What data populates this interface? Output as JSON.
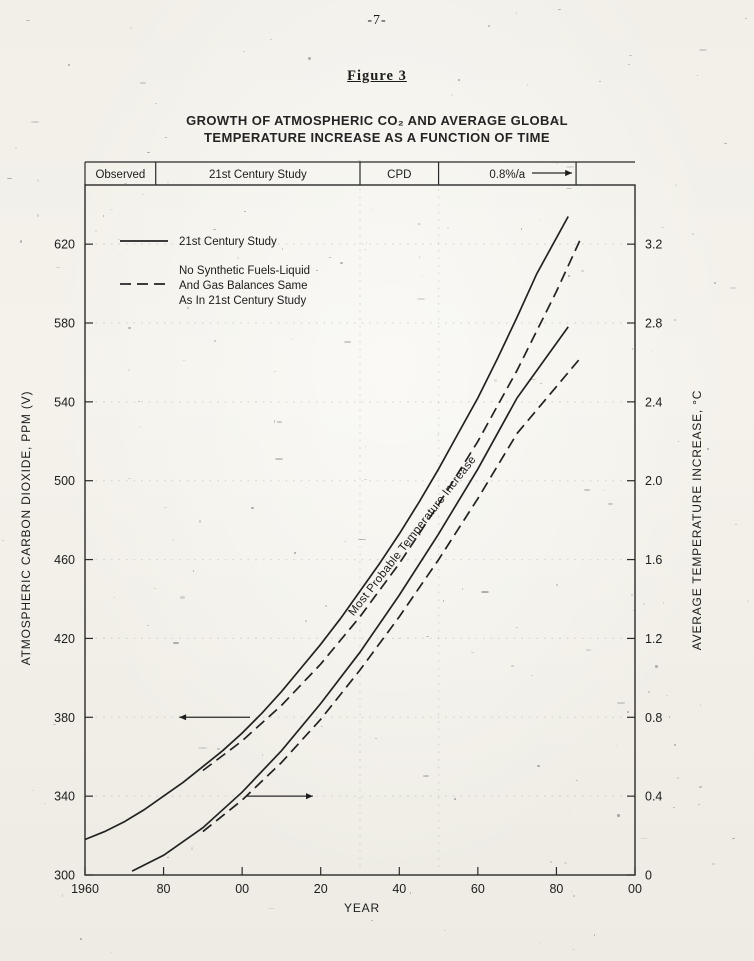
{
  "page": {
    "number": "-7-",
    "figure_label": "Figure 3"
  },
  "chart_data": {
    "type": "line",
    "title_lines": [
      "GROWTH OF ATMOSPHERIC CO₂ AND AVERAGE GLOBAL",
      "TEMPERATURE INCREASE AS A FUNCTION OF TIME"
    ],
    "xlabel": "YEAR",
    "ylabel_left": "ATMOSPHERIC CARBON DIOXIDE, PPM (V)",
    "ylabel_right": "AVERAGE TEMPERATURE INCREASE, °C",
    "xlim": [
      1960,
      2100
    ],
    "ylim_left": [
      300,
      650
    ],
    "ylim_right": [
      0,
      3.5
    ],
    "x_tick_values": [
      1960,
      1980,
      2000,
      2020,
      2040,
      2060,
      2080,
      2100
    ],
    "x_tick_labels": [
      "1960",
      "80",
      "00",
      "20",
      "40",
      "60",
      "80",
      "00"
    ],
    "y_left_ticks": [
      300,
      340,
      380,
      420,
      460,
      500,
      540,
      580,
      620
    ],
    "y_right_tick_values": [
      0,
      0.4,
      0.8,
      1.2,
      1.6,
      2.0,
      2.4,
      2.8,
      3.2
    ],
    "y_right_tick_labels": [
      "0",
      "0.4",
      "0.8",
      "1.2",
      "1.6",
      "2.0",
      "2.4",
      "2.8",
      "3.2"
    ],
    "bands": [
      {
        "label": "Observed",
        "from": 1960,
        "to": 1978
      },
      {
        "label": "21st Century Study",
        "from": 1978,
        "to": 2030
      },
      {
        "label": "CPD",
        "from": 2030,
        "to": 2050
      },
      {
        "label": "0.8%/a",
        "from": 2050,
        "to": 2085
      }
    ],
    "legend": [
      {
        "style": "solid",
        "lines": [
          "21st Century Study"
        ]
      },
      {
        "style": "dashed",
        "lines": [
          "No Synthetic Fuels-Liquid",
          "And Gas Balances Same",
          "As In 21st Century Study"
        ]
      }
    ],
    "annotations": {
      "curve_label": "Most Probable Temperature Increase",
      "co2_axis_pointer": {
        "ppm": 380,
        "from_year": 2002,
        "to_year": 1984
      },
      "temp_axis_pointer": {
        "temp_c": 0.4,
        "from_year": 2001,
        "to_year": 2018
      }
    },
    "series": [
      {
        "id": "co2-21st-century-study",
        "name": "CO2 (21st Century Study)",
        "axis": "left",
        "style": "solid",
        "x": [
          1960,
          1965,
          1970,
          1975,
          1980,
          1985,
          1990,
          1995,
          2000,
          2005,
          2010,
          2015,
          2020,
          2025,
          2030,
          2035,
          2040,
          2045,
          2050,
          2055,
          2060,
          2065,
          2070,
          2075,
          2083
        ],
        "y": [
          318,
          322,
          327,
          333,
          340,
          347,
          355,
          363,
          372,
          382,
          393,
          405,
          417,
          430,
          444,
          458,
          473,
          489,
          506,
          524,
          542,
          562,
          583,
          605,
          634
        ]
      },
      {
        "id": "co2-no-synthetic-fuels",
        "name": "CO2 (No Synthetic Fuels)",
        "axis": "left",
        "style": "dashed",
        "x": [
          1990,
          2000,
          2010,
          2020,
          2030,
          2040,
          2050,
          2060,
          2070,
          2080,
          2086
        ],
        "y": [
          353,
          368,
          386,
          407,
          431,
          458,
          488,
          520,
          556,
          596,
          622
        ]
      },
      {
        "id": "temp-21st-century-study",
        "name": "Temperature (21st Century Study)",
        "axis": "right",
        "style": "solid",
        "x": [
          1972,
          1980,
          1990,
          2000,
          2010,
          2020,
          2030,
          2040,
          2050,
          2060,
          2070,
          2083
        ],
        "y": [
          0.02,
          0.1,
          0.24,
          0.42,
          0.63,
          0.87,
          1.13,
          1.42,
          1.73,
          2.06,
          2.42,
          2.78
        ]
      },
      {
        "id": "temp-no-synthetic-fuels",
        "name": "Temperature (No Synthetic Fuels)",
        "axis": "right",
        "style": "dashed",
        "x": [
          1990,
          2000,
          2010,
          2020,
          2030,
          2040,
          2050,
          2060,
          2070,
          2086
        ],
        "y": [
          0.22,
          0.38,
          0.57,
          0.79,
          1.04,
          1.31,
          1.6,
          1.91,
          2.24,
          2.62
        ]
      }
    ]
  }
}
